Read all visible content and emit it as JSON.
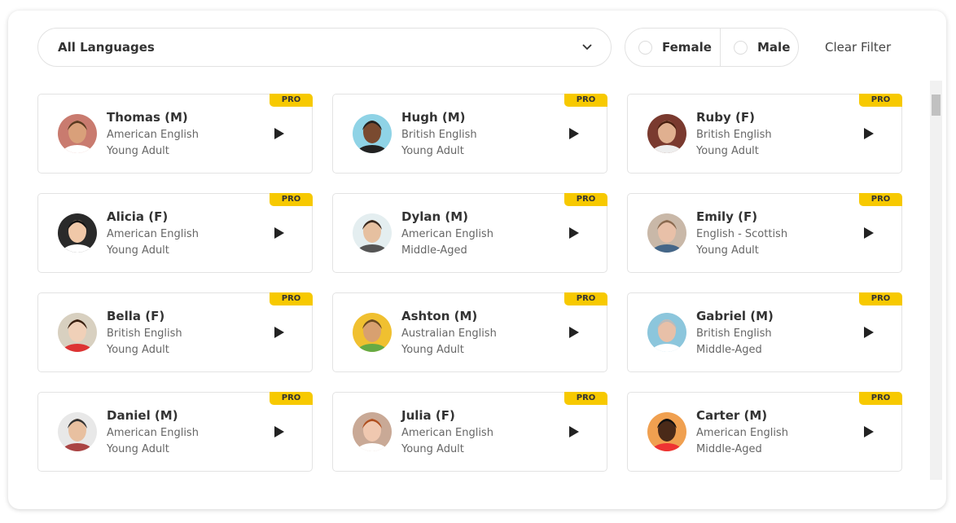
{
  "filters": {
    "language": "All Languages",
    "genders": [
      "Female",
      "Male"
    ],
    "clear": "Clear Filter"
  },
  "voices": [
    {
      "name": "Thomas (M)",
      "language": "American English",
      "age": "Young Adult",
      "badge": "PRO"
    },
    {
      "name": "Hugh (M)",
      "language": "British English",
      "age": "Young Adult",
      "badge": "PRO"
    },
    {
      "name": "Ruby (F)",
      "language": "British English",
      "age": "Young Adult",
      "badge": "PRO"
    },
    {
      "name": "Alicia (F)",
      "language": "American English",
      "age": "Young Adult",
      "badge": "PRO"
    },
    {
      "name": "Dylan (M)",
      "language": "American English",
      "age": "Middle-Aged",
      "badge": "PRO"
    },
    {
      "name": "Emily (F)",
      "language": "English - Scottish",
      "age": "Young Adult",
      "badge": "PRO"
    },
    {
      "name": "Bella (F)",
      "language": "British English",
      "age": "Young Adult",
      "badge": "PRO"
    },
    {
      "name": "Ashton (M)",
      "language": "Australian English",
      "age": "Young Adult",
      "badge": "PRO"
    },
    {
      "name": "Gabriel (M)",
      "language": "British English",
      "age": "Middle-Aged",
      "badge": "PRO"
    },
    {
      "name": "Daniel (M)",
      "language": "American English",
      "age": "Young Adult",
      "badge": "PRO"
    },
    {
      "name": "Julia (F)",
      "language": "American English",
      "age": "Young Adult",
      "badge": "PRO"
    },
    {
      "name": "Carter (M)",
      "language": "American English",
      "age": "Middle-Aged",
      "badge": "PRO"
    }
  ]
}
